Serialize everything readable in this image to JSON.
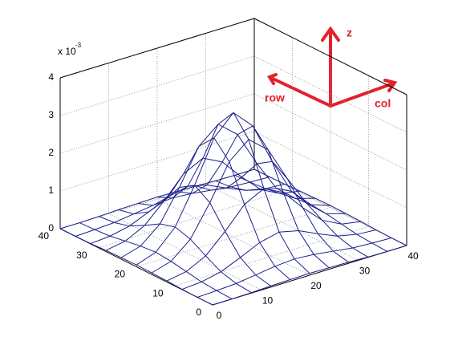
{
  "chart_data": {
    "type": "surface",
    "z_multiplier": "x 10",
    "z_multiplier_exponent": "-3",
    "x": [
      0,
      4,
      8,
      12,
      16,
      20,
      24,
      28,
      32,
      36,
      40
    ],
    "y": [
      0,
      4,
      8,
      12,
      16,
      20,
      24,
      28,
      32,
      36,
      40
    ],
    "z": [
      [
        0,
        0,
        0.01,
        0.03,
        0.04,
        0.05,
        0.04,
        0.03,
        0.01,
        0,
        0
      ],
      [
        0,
        0.02,
        0.05,
        0.12,
        0.19,
        0.23,
        0.19,
        0.12,
        0.05,
        0.02,
        0
      ],
      [
        0.01,
        0.05,
        0.16,
        0.38,
        0.62,
        0.74,
        0.62,
        0.38,
        0.16,
        0.05,
        0.01
      ],
      [
        0.03,
        0.12,
        0.38,
        0.87,
        1.43,
        1.69,
        1.43,
        0.87,
        0.38,
        0.12,
        0.03
      ],
      [
        0.04,
        0.19,
        0.62,
        1.43,
        2.36,
        2.79,
        2.36,
        1.43,
        0.62,
        0.19,
        0.04
      ],
      [
        0.05,
        0.23,
        0.74,
        1.69,
        2.79,
        3.3,
        2.79,
        1.69,
        0.74,
        0.23,
        0.05
      ],
      [
        0.04,
        0.19,
        0.62,
        1.43,
        2.36,
        2.79,
        2.36,
        1.43,
        0.62,
        0.19,
        0.04
      ],
      [
        0.03,
        0.12,
        0.38,
        0.87,
        1.43,
        1.69,
        1.43,
        0.87,
        0.38,
        0.12,
        0.03
      ],
      [
        0.01,
        0.05,
        0.16,
        0.38,
        0.62,
        0.74,
        0.62,
        0.38,
        0.16,
        0.05,
        0.01
      ],
      [
        0,
        0.02,
        0.05,
        0.12,
        0.19,
        0.23,
        0.19,
        0.12,
        0.05,
        0.02,
        0
      ],
      [
        0,
        0,
        0.01,
        0.03,
        0.04,
        0.05,
        0.04,
        0.03,
        0.01,
        0,
        0
      ]
    ],
    "xlim": [
      0,
      40
    ],
    "ylim": [
      0,
      40
    ],
    "zlim": [
      0,
      4
    ],
    "xticks": [
      0,
      10,
      20,
      30,
      40
    ],
    "yticks": [
      0,
      10,
      20,
      30,
      40
    ],
    "zticks": [
      0,
      1,
      2,
      3,
      4
    ],
    "grid": true,
    "color": "#1b1f8a",
    "annotations": [
      "z",
      "row",
      "col"
    ],
    "annotation_color": "#e3212b"
  }
}
